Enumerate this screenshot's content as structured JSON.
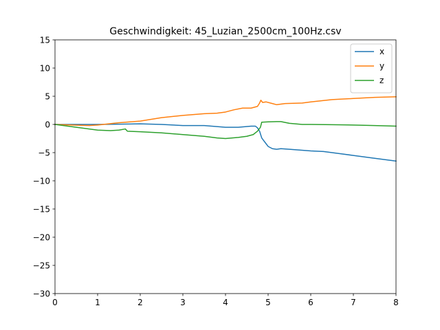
{
  "chart_data": {
    "type": "line",
    "title": "Geschwindigkeit: 45_Luzian_2500cm_100Hz.csv",
    "xlabel": "",
    "ylabel": "",
    "xlim": [
      0,
      8
    ],
    "ylim": [
      -30,
      15
    ],
    "xticks": [
      0,
      1,
      2,
      3,
      4,
      5,
      6,
      7,
      8
    ],
    "yticks": [
      -30,
      -25,
      -20,
      -15,
      -10,
      -5,
      0,
      5,
      10,
      15
    ],
    "grid": false,
    "legend": "top-right",
    "series": [
      {
        "name": "x",
        "color": "#1f77b4",
        "points": [
          [
            0,
            0
          ],
          [
            1,
            0
          ],
          [
            1.5,
            0.05
          ],
          [
            2,
            0.1
          ],
          [
            2.5,
            0
          ],
          [
            3,
            -0.2
          ],
          [
            3.5,
            -0.2
          ],
          [
            4,
            -0.5
          ],
          [
            4.3,
            -0.5
          ],
          [
            4.6,
            -0.3
          ],
          [
            4.7,
            -0.3
          ],
          [
            4.75,
            -0.6
          ],
          [
            4.8,
            -1.2
          ],
          [
            4.85,
            -2.4
          ],
          [
            4.9,
            -2.9
          ],
          [
            4.95,
            -3.4
          ],
          [
            5,
            -3.9
          ],
          [
            5.1,
            -4.3
          ],
          [
            5.2,
            -4.4
          ],
          [
            5.3,
            -4.3
          ],
          [
            5.5,
            -4.4
          ],
          [
            6,
            -4.7
          ],
          [
            6.3,
            -4.8
          ],
          [
            6.5,
            -5
          ],
          [
            6.7,
            -5.2
          ],
          [
            7,
            -5.5
          ],
          [
            7.5,
            -6
          ],
          [
            8,
            -6.5
          ]
        ]
      },
      {
        "name": "y",
        "color": "#ff7f0e",
        "points": [
          [
            0,
            0
          ],
          [
            0.8,
            -0.2
          ],
          [
            1,
            -0.1
          ],
          [
            1.5,
            0.3
          ],
          [
            2,
            0.6
          ],
          [
            2.5,
            1.2
          ],
          [
            3,
            1.6
          ],
          [
            3.5,
            1.9
          ],
          [
            3.8,
            2
          ],
          [
            4,
            2.2
          ],
          [
            4.2,
            2.6
          ],
          [
            4.4,
            2.9
          ],
          [
            4.6,
            2.9
          ],
          [
            4.75,
            3.2
          ],
          [
            4.8,
            3.8
          ],
          [
            4.83,
            4.3
          ],
          [
            4.87,
            3.9
          ],
          [
            4.95,
            4
          ],
          [
            5.1,
            3.7
          ],
          [
            5.2,
            3.5
          ],
          [
            5.4,
            3.7
          ],
          [
            5.8,
            3.8
          ],
          [
            6,
            4
          ],
          [
            6.5,
            4.4
          ],
          [
            7,
            4.6
          ],
          [
            7.5,
            4.8
          ],
          [
            8,
            4.9
          ]
        ]
      },
      {
        "name": "z",
        "color": "#2ca02c",
        "points": [
          [
            0,
            0
          ],
          [
            0.5,
            -0.5
          ],
          [
            1,
            -1
          ],
          [
            1.3,
            -1.1
          ],
          [
            1.5,
            -1
          ],
          [
            1.65,
            -0.8
          ],
          [
            1.7,
            -1.2
          ],
          [
            2,
            -1.3
          ],
          [
            2.5,
            -1.5
          ],
          [
            3,
            -1.8
          ],
          [
            3.5,
            -2.1
          ],
          [
            3.8,
            -2.4
          ],
          [
            4,
            -2.5
          ],
          [
            4.3,
            -2.3
          ],
          [
            4.5,
            -2.1
          ],
          [
            4.65,
            -1.8
          ],
          [
            4.75,
            -1.2
          ],
          [
            4.82,
            -0.5
          ],
          [
            4.85,
            0.4
          ],
          [
            5,
            0.45
          ],
          [
            5.2,
            0.5
          ],
          [
            5.3,
            0.5
          ],
          [
            5.5,
            0.2
          ],
          [
            5.8,
            0
          ],
          [
            6,
            0
          ],
          [
            6.5,
            -0.05
          ],
          [
            7,
            -0.1
          ],
          [
            7.5,
            -0.2
          ],
          [
            8,
            -0.3
          ]
        ]
      }
    ]
  }
}
